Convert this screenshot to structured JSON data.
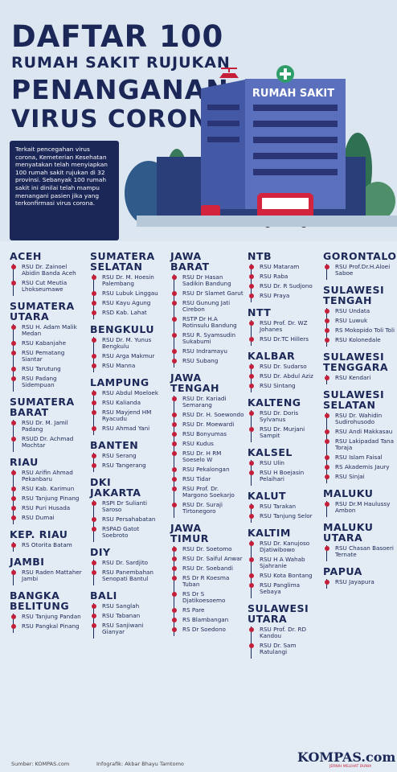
{
  "header": {
    "title_lines": [
      "DAFTAR 100",
      "RUMAH SAKIT RUJUKAN",
      "PENANGANAN",
      "VIRUS CORONA"
    ],
    "building_sign": "RUMAH SAKIT",
    "description": "Terkait pencegahan virus corona, Kemeterian Kesehatan menyatakan telah menyiapkan 100 rumah sakit rujukan di 32 provinsi. Sebanyak 100 rumah sakit ini dinilai telah mampu menangani pasien jika yang terkonfirmasi virus corona."
  },
  "columns": [
    [
      {
        "region": "ACEH",
        "hospitals": [
          "RSU Dr. Zainoel Abidin Banda Aceh",
          "RSU Cut Meutia Lhokseumawe"
        ]
      },
      {
        "region": "SUMATERA UTARA",
        "hospitals": [
          "RSU H. Adam Malik Medan",
          "RSU Kabanjahe",
          "RSU Pematang Siantar",
          "RSU Tarutung",
          "RSU Padang Sidempuan"
        ]
      },
      {
        "region": "SUMATERA BARAT",
        "hospitals": [
          "RSU Dr. M. Jamil Padang",
          "RSUD Dr. Achmad Mochtar"
        ]
      },
      {
        "region": "RIAU",
        "hospitals": [
          "RSU Arifin Ahmad Pekanbaru",
          "RSU Kab. Karimun",
          "RSU Tanjung Pinang",
          "RSU Puri Husada",
          "RSU Dumai"
        ]
      },
      {
        "region": "KEP. RIAU",
        "hospitals": [
          "RS Otorita Batam"
        ]
      },
      {
        "region": "JAMBI",
        "hospitals": [
          "RSU Raden Mattaher Jambi"
        ]
      },
      {
        "region": "BANGKA BELITUNG",
        "hospitals": [
          "RSU Tanjung Pandan",
          "RSU Pangkal Pinang"
        ]
      }
    ],
    [
      {
        "region": "SUMATERA SELATAN",
        "hospitals": [
          "RSU Dr. M. Hoesin Palembang",
          "RSU Lubuk Linggau",
          "RSU Kayu Agung",
          "RSD Kab. Lahat"
        ]
      },
      {
        "region": "BENGKULU",
        "hospitals": [
          "RSU Dr. M. Yunus Bengkulu",
          "RSU Arga Makmur",
          "RSU Manna"
        ]
      },
      {
        "region": "LAMPUNG",
        "hospitals": [
          "RSU Abdul Moeloek",
          "RSU Kalianda",
          "RSU Mayjend HM Ryacudu",
          "RSU Ahmad Yani"
        ]
      },
      {
        "region": "BANTEN",
        "hospitals": [
          "RSU Serang",
          "RSU Tangerang"
        ]
      },
      {
        "region": "DKI JAKARTA",
        "hospitals": [
          "RSPI Dr Sulianti Saroso",
          "RSU Persahabatan",
          "RSPAD Gatot Soebroto"
        ]
      },
      {
        "region": "DIY",
        "hospitals": [
          "RSU Dr. Sardjito",
          "RSU Panembahan Senopati Bantul"
        ]
      },
      {
        "region": "BALI",
        "hospitals": [
          "RSU Sanglah",
          "RSU Tabanan",
          "RSU Sanjiwani Gianyar"
        ]
      }
    ],
    [
      {
        "region": "JAWA BARAT",
        "hospitals": [
          "RSU Dr Hasan Sadikin Bandung",
          "RSU Dr Slamet Garut",
          "RSU Gunung Jati Cirebon",
          "RSTP Dr H.A Rotinsulu Bandung",
          "RSU R. Syamsudin Sukabumi",
          "RSU Indramayu",
          "RSU Subang"
        ]
      },
      {
        "region": "JAWA TENGAH",
        "hospitals": [
          "RSU Dr. Kariadi Semarang",
          "RSU Dr. H. Soewondo",
          "RSU Dr. Moewardi",
          "RSU Bonyumas",
          "RSU Kudus",
          "RSU Dr. H RM Soeselo W",
          "RSU Pekalongan",
          "RSU Tidar",
          "RSU Prof. Dr. Margono Soekarjo",
          "RSU Dr. Suraji Tirtonegoro"
        ]
      },
      {
        "region": "JAWA TIMUR",
        "hospitals": [
          "RSU Dr. Soetomo",
          "RSU Dr. Saiful Anwar",
          "RSU Dr. Soebandi",
          "RS Dr R Koesma Tuban",
          "RS Dr S Djatikoesoemo",
          "RS Pare",
          "RS Blambangan",
          "RS Dr Soedono"
        ]
      }
    ],
    [
      {
        "region": "NTB",
        "hospitals": [
          "RSU Mataram",
          "RSU Raba",
          "RSU Dr. R Sudjono",
          "RSU Praya"
        ]
      },
      {
        "region": "NTT",
        "hospitals": [
          "RSU Prof. Dr. WZ Johanes",
          "RSU Dr.TC Hillers"
        ]
      },
      {
        "region": "KALBAR",
        "hospitals": [
          "RSU Dr. Sudarso",
          "RSU Dr. Abdul Aziz",
          "RSU Sintang"
        ]
      },
      {
        "region": "KALTENG",
        "hospitals": [
          "RSU Dr. Doris Sylvanus",
          "RSU Dr. Murjani Sampit"
        ]
      },
      {
        "region": "KALSEL",
        "hospitals": [
          "RSU Ulin",
          "RSU H Boejasin Pelaihari"
        ]
      },
      {
        "region": "KALUT",
        "hospitals": [
          "RSU Tarakan",
          "RSU Tanjung Selor"
        ]
      },
      {
        "region": "KALTIM",
        "hospitals": [
          "RSU Dr. Kanujoso Djatiwibowo",
          "RSU H A Wahab Sjahranie",
          "RSU Kota Bontang",
          "RSU Panglima Sebaya"
        ]
      },
      {
        "region": "SULAWESI UTARA",
        "hospitals": [
          "RSU Prof. Dr. RD Kandou",
          "RSU Dr. Sam Ratulangi"
        ]
      }
    ],
    [
      {
        "region": "GORONTALO",
        "hospitals": [
          "RSU Prof.Dr.H.Aloei Saboe"
        ]
      },
      {
        "region": "SULAWESI TENGAH",
        "hospitals": [
          "RSU Undata",
          "RSU Luwuk",
          "RS Mokopido Toli Toli",
          "RSU Kolonedale"
        ]
      },
      {
        "region": "SULAWESI TENGGARA",
        "hospitals": [
          "RSU Kendari"
        ]
      },
      {
        "region": "SULAWESI SELATAN",
        "hospitals": [
          "RSU Dr. Wahidin Sudirohusodo",
          "RSU Andi Makkasau",
          "RSU Lakipadad Tana Toraja",
          "RSU Islam Faisal",
          "RS Akademis Jaury",
          "RSU Sinjai"
        ]
      },
      {
        "region": "MALUKU",
        "hospitals": [
          "RSU Dr.M Haulussy Ambon"
        ]
      },
      {
        "region": "MALUKU UTARA",
        "hospitals": [
          "RSU Chasan Basoeri Ternate"
        ]
      },
      {
        "region": "PAPUA",
        "hospitals": [
          "RSU Jayapura"
        ]
      }
    ]
  ],
  "footer": {
    "source": "Sumber: KOMPAS.com",
    "credit": "Infografik: Akbar Bhayu Tamtomo",
    "logo": "KOMPAS.com",
    "tagline": "JERNIH MELIHAT DUNIA"
  }
}
